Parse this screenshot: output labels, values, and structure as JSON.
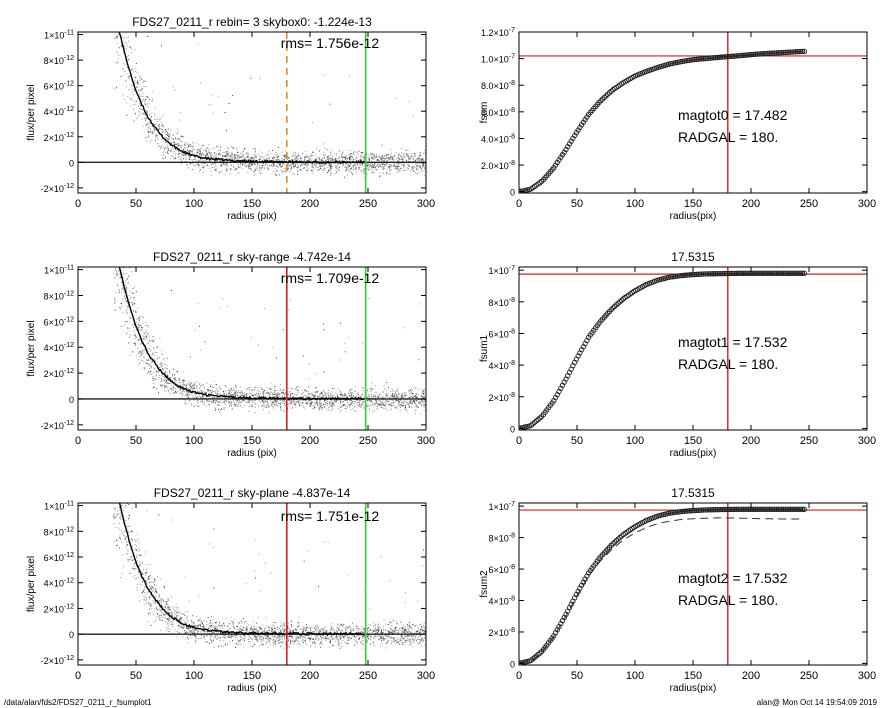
{
  "chart_data": [
    {
      "type": "scatter",
      "title": "FDS27_0211_r rebin= 3    skybox0: -1.224e-13",
      "annotation": "rms= 1.756e-12",
      "xlabel": "radius (pix)",
      "ylabel": "flux/per pixel",
      "xlim": [
        0,
        300
      ],
      "ylim": [
        -2.4e-12,
        1.02e-11
      ],
      "x_ticks": [
        "0",
        "50",
        "100",
        "150",
        "200",
        "250",
        "300"
      ],
      "y_ticks": [
        {
          "mant": "-2×10",
          "exp": "-12",
          "value": -2e-12
        },
        {
          "mant": "0",
          "exp": "",
          "value": 0
        },
        {
          "mant": "2×10",
          "exp": "-12",
          "value": 2e-12
        },
        {
          "mant": "4×10",
          "exp": "-12",
          "value": 4e-12
        },
        {
          "mant": "6×10",
          "exp": "-12",
          "value": 6e-12
        },
        {
          "mant": "8×10",
          "exp": "-12",
          "value": 8e-12
        },
        {
          "mant": "1×10",
          "exp": "-11",
          "value": 1e-11
        }
      ],
      "profile": {
        "x": [
          35,
          40,
          45,
          50,
          55,
          60,
          65,
          70,
          75,
          80,
          85,
          90,
          95,
          100,
          110,
          120,
          130,
          140,
          150,
          160,
          170,
          180,
          190,
          200,
          210,
          220,
          230,
          240,
          248
        ],
        "y": [
          1.05e-11,
          8.6e-12,
          7e-12,
          5.6e-12,
          4.5e-12,
          3.6e-12,
          2.9e-12,
          2.3e-12,
          1.8e-12,
          1.4e-12,
          1.1e-12,
          8.5e-13,
          6.5e-13,
          5e-13,
          3.2e-13,
          2.2e-13,
          1.5e-13,
          1.1e-13,
          8e-14,
          6e-14,
          5e-14,
          4e-14,
          3e-14,
          3e-14,
          2e-14,
          2e-14,
          1e-14,
          1e-14,
          1e-14
        ]
      },
      "points_scatter": 3.8e-13,
      "vlines": [
        {
          "x": 180,
          "color": "#e8891c",
          "dashed": true
        },
        {
          "x": 248,
          "color": "#2ad62a",
          "dashed": false
        }
      ],
      "hline_y": 0,
      "colors": {
        "points": "#9a9a9a",
        "points_dark": "#444444",
        "profile": "#000000"
      }
    },
    {
      "type": "line",
      "title": "",
      "xlabel": "radius(pix)",
      "ylabel": "fsum",
      "xlim": [
        0,
        300
      ],
      "ylim": [
        -1e-09,
        1.2e-07
      ],
      "x_ticks": [
        "0",
        "50",
        "100",
        "150",
        "200",
        "250",
        "300"
      ],
      "y_ticks": [
        {
          "mant": "0",
          "exp": "",
          "value": 0
        },
        {
          "mant": "2.0×10",
          "exp": "-8",
          "value": 2e-08
        },
        {
          "mant": "4.0×10",
          "exp": "-8",
          "value": 4e-08
        },
        {
          "mant": "6.0×10",
          "exp": "-8",
          "value": 6e-08
        },
        {
          "mant": "8.0×10",
          "exp": "-8",
          "value": 8e-08
        },
        {
          "mant": "1.0×10",
          "exp": "-7",
          "value": 1e-07
        },
        {
          "mant": "1.2×10",
          "exp": "-7",
          "value": 1.2e-07
        }
      ],
      "curve": {
        "x": [
          0,
          10,
          20,
          30,
          40,
          50,
          60,
          70,
          80,
          90,
          100,
          110,
          120,
          130,
          140,
          150,
          160,
          170,
          180,
          190,
          200,
          210,
          220,
          230,
          240,
          247
        ],
        "y": [
          0,
          1.8e-09,
          8e-09,
          1.8e-08,
          3.1e-08,
          4.5e-08,
          5.8e-08,
          6.8e-08,
          7.6e-08,
          8.2e-08,
          8.7e-08,
          9.05e-08,
          9.35e-08,
          9.6e-08,
          9.78e-08,
          9.92e-08,
          1e-07,
          1.008e-07,
          1.015e-07,
          1.022e-07,
          1.03e-07,
          1.037e-07,
          1.042e-07,
          1.047e-07,
          1.052e-07,
          1.055e-07
        ]
      },
      "vline_x": 180,
      "hline_y": 1.02e-07,
      "text_lines": [
        "magtot0 =  17.482",
        "RADGAL =    180."
      ],
      "colors": {
        "curve": "#202020",
        "guide": "#d42020"
      }
    },
    {
      "type": "scatter",
      "title": "FDS27_0211_r sky-range -4.742e-14",
      "annotation": "rms= 1.709e-12",
      "xlabel": "radius (pix)",
      "ylabel": "flux/per pixel",
      "xlim": [
        0,
        300
      ],
      "ylim": [
        -2.4e-12,
        1.02e-11
      ],
      "x_ticks": [
        "0",
        "50",
        "100",
        "150",
        "200",
        "250",
        "300"
      ],
      "y_ticks": [
        {
          "mant": "-2×10",
          "exp": "-12",
          "value": -2e-12
        },
        {
          "mant": "0",
          "exp": "",
          "value": 0
        },
        {
          "mant": "2×10",
          "exp": "-12",
          "value": 2e-12
        },
        {
          "mant": "4×10",
          "exp": "-12",
          "value": 4e-12
        },
        {
          "mant": "6×10",
          "exp": "-12",
          "value": 6e-12
        },
        {
          "mant": "8×10",
          "exp": "-12",
          "value": 8e-12
        },
        {
          "mant": "1×10",
          "exp": "-11",
          "value": 1e-11
        }
      ],
      "profile": {
        "x": [
          35,
          40,
          45,
          50,
          55,
          60,
          65,
          70,
          75,
          80,
          85,
          90,
          95,
          100,
          110,
          120,
          130,
          140,
          150,
          160,
          170,
          180,
          190,
          200,
          210,
          220,
          230,
          240,
          248
        ],
        "y": [
          1.05e-11,
          8.6e-12,
          7e-12,
          5.6e-12,
          4.5e-12,
          3.6e-12,
          2.9e-12,
          2.3e-12,
          1.8e-12,
          1.4e-12,
          1.1e-12,
          8.5e-13,
          6.5e-13,
          5e-13,
          3.2e-13,
          2.2e-13,
          1.5e-13,
          1.1e-13,
          8e-14,
          6e-14,
          5e-14,
          4e-14,
          3e-14,
          3e-14,
          2e-14,
          2e-14,
          1e-14,
          1e-14,
          1e-14
        ]
      },
      "points_scatter": 3.6e-13,
      "vlines": [
        {
          "x": 180,
          "color": "#d42020",
          "dashed": false
        },
        {
          "x": 248,
          "color": "#2ad62a",
          "dashed": false
        }
      ],
      "hline_y": 0,
      "colors": {
        "points": "#9a9a9a",
        "points_dark": "#444444",
        "profile": "#000000"
      }
    },
    {
      "type": "line",
      "title": "17.5315",
      "xlabel": "radius(pix)",
      "ylabel": "fsum1",
      "xlim": [
        0,
        300
      ],
      "ylim": [
        -1e-09,
        1.02e-07
      ],
      "x_ticks": [
        "0",
        "50",
        "100",
        "150",
        "200",
        "250",
        "300"
      ],
      "y_ticks": [
        {
          "mant": "0",
          "exp": "",
          "value": 0
        },
        {
          "mant": "2×10",
          "exp": "-8",
          "value": 2e-08
        },
        {
          "mant": "4×10",
          "exp": "-8",
          "value": 4e-08
        },
        {
          "mant": "6×10",
          "exp": "-8",
          "value": 6e-08
        },
        {
          "mant": "8×10",
          "exp": "-8",
          "value": 8e-08
        },
        {
          "mant": "1×10",
          "exp": "-7",
          "value": 1e-07
        }
      ],
      "curve": {
        "x": [
          0,
          10,
          20,
          30,
          40,
          50,
          60,
          70,
          80,
          90,
          100,
          110,
          120,
          130,
          140,
          150,
          160,
          170,
          180,
          190,
          200,
          210,
          220,
          230,
          240,
          247
        ],
        "y": [
          0,
          1.7e-09,
          7.8e-09,
          1.75e-08,
          3.05e-08,
          4.45e-08,
          5.75e-08,
          6.75e-08,
          7.55e-08,
          8.2e-08,
          8.7e-08,
          9.1e-08,
          9.38e-08,
          9.56e-08,
          9.66e-08,
          9.72e-08,
          9.76e-08,
          9.78e-08,
          9.79e-08,
          9.8e-08,
          9.8e-08,
          9.8e-08,
          9.8e-08,
          9.8e-08,
          9.8e-08,
          9.8e-08
        ]
      },
      "vline_x": 180,
      "hline_y": 9.75e-08,
      "text_lines": [
        "magtot1 =  17.532",
        "RADGAL =    180."
      ],
      "colors": {
        "curve": "#202020",
        "guide": "#d42020"
      }
    },
    {
      "type": "scatter",
      "title": "FDS27_0211_r sky-plane -4.837e-14",
      "annotation": "rms= 1.751e-12",
      "xlabel": "radius (pix)",
      "ylabel": "flux/per pixel",
      "xlim": [
        0,
        300
      ],
      "ylim": [
        -2.4e-12,
        1.02e-11
      ],
      "x_ticks": [
        "0",
        "50",
        "100",
        "150",
        "200",
        "250",
        "300"
      ],
      "y_ticks": [
        {
          "mant": "-2×10",
          "exp": "-12",
          "value": -2e-12
        },
        {
          "mant": "0",
          "exp": "",
          "value": 0
        },
        {
          "mant": "2×10",
          "exp": "-12",
          "value": 2e-12
        },
        {
          "mant": "4×10",
          "exp": "-12",
          "value": 4e-12
        },
        {
          "mant": "6×10",
          "exp": "-12",
          "value": 6e-12
        },
        {
          "mant": "8×10",
          "exp": "-12",
          "value": 8e-12
        },
        {
          "mant": "1×10",
          "exp": "-11",
          "value": 1e-11
        }
      ],
      "profile": {
        "x": [
          35,
          40,
          45,
          50,
          55,
          60,
          65,
          70,
          75,
          80,
          85,
          90,
          95,
          100,
          110,
          120,
          130,
          140,
          150,
          160,
          170,
          180,
          190,
          200,
          210,
          220,
          230,
          240,
          248
        ],
        "y": [
          1.05e-11,
          8.6e-12,
          7e-12,
          5.6e-12,
          4.5e-12,
          3.6e-12,
          2.9e-12,
          2.3e-12,
          1.8e-12,
          1.4e-12,
          1.1e-12,
          8.5e-13,
          6.5e-13,
          5e-13,
          3.2e-13,
          2.2e-13,
          1.5e-13,
          1.1e-13,
          8e-14,
          6e-14,
          5e-14,
          4e-14,
          3e-14,
          3e-14,
          2e-14,
          2e-14,
          1e-14,
          1e-14,
          1e-14
        ]
      },
      "points_scatter": 3.8e-13,
      "vlines": [
        {
          "x": 180,
          "color": "#d42020",
          "dashed": false
        },
        {
          "x": 248,
          "color": "#2ad62a",
          "dashed": false
        }
      ],
      "hline_y": 0,
      "colors": {
        "points": "#9a9a9a",
        "points_dark": "#444444",
        "profile": "#000000"
      }
    },
    {
      "type": "line",
      "title": "17.5315",
      "xlabel": "radius(pix)",
      "ylabel": "fsum2",
      "xlim": [
        0,
        300
      ],
      "ylim": [
        -1e-09,
        1.02e-07
      ],
      "x_ticks": [
        "0",
        "50",
        "100",
        "150",
        "200",
        "250",
        "300"
      ],
      "y_ticks": [
        {
          "mant": "0",
          "exp": "",
          "value": 0
        },
        {
          "mant": "2×10",
          "exp": "-8",
          "value": 2e-08
        },
        {
          "mant": "4×10",
          "exp": "-8",
          "value": 4e-08
        },
        {
          "mant": "6×10",
          "exp": "-8",
          "value": 6e-08
        },
        {
          "mant": "8×10",
          "exp": "-8",
          "value": 8e-08
        },
        {
          "mant": "1×10",
          "exp": "-7",
          "value": 1e-07
        }
      ],
      "curve": {
        "x": [
          0,
          10,
          20,
          30,
          40,
          50,
          60,
          70,
          80,
          90,
          100,
          110,
          120,
          130,
          140,
          150,
          160,
          170,
          180,
          190,
          200,
          210,
          220,
          230,
          240,
          247
        ],
        "y": [
          0,
          1.7e-09,
          7.8e-09,
          1.75e-08,
          3.05e-08,
          4.45e-08,
          5.75e-08,
          6.75e-08,
          7.55e-08,
          8.2e-08,
          8.7e-08,
          9.1e-08,
          9.38e-08,
          9.56e-08,
          9.66e-08,
          9.72e-08,
          9.76e-08,
          9.78e-08,
          9.79e-08,
          9.8e-08,
          9.8e-08,
          9.8e-08,
          9.8e-08,
          9.8e-08,
          9.8e-08,
          9.8e-08
        ]
      },
      "dashed_curve": {
        "x": [
          0,
          10,
          20,
          30,
          40,
          50,
          60,
          70,
          80,
          90,
          100,
          110,
          120,
          130,
          140,
          150,
          160,
          170,
          180,
          190,
          200,
          210,
          220,
          230,
          240,
          247
        ],
        "y": [
          0,
          1.6e-09,
          7.5e-09,
          1.7e-08,
          2.95e-08,
          4.3e-08,
          5.55e-08,
          6.5e-08,
          7.25e-08,
          7.85e-08,
          8.3e-08,
          8.65e-08,
          8.9e-08,
          9.05e-08,
          9.15e-08,
          9.2e-08,
          9.23e-08,
          9.25e-08,
          9.25e-08,
          9.24e-08,
          9.22e-08,
          9.2e-08,
          9.19e-08,
          9.18e-08,
          9.18e-08,
          9.18e-08
        ]
      },
      "vline_x": 180,
      "hline_y": 9.75e-08,
      "text_lines": [
        "magtot2 =  17.532",
        "RADGAL =    180."
      ],
      "colors": {
        "curve": "#202020",
        "guide": "#d42020"
      }
    }
  ],
  "footer": {
    "path": "/data/alan/fds2/FDS27_0211_r_fsumplot1",
    "stamp": "alan@  Mon Oct 14 19:54:09 2019"
  }
}
